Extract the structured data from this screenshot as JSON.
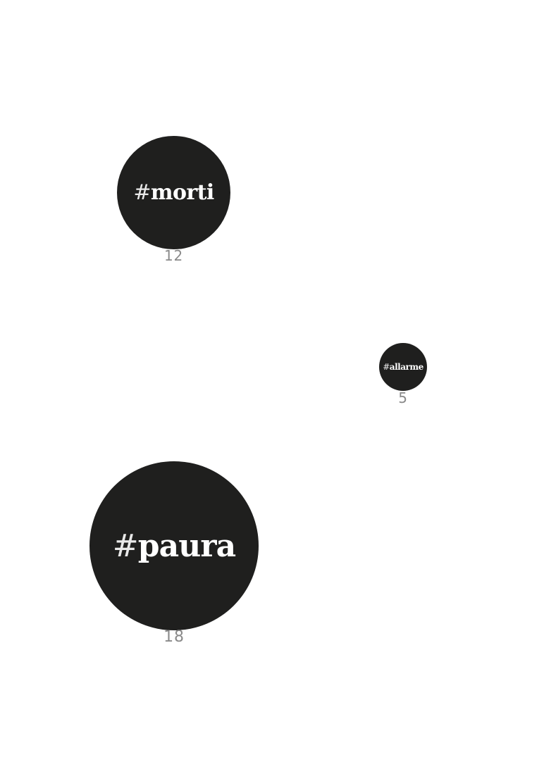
{
  "bubbles": [
    {
      "hash": "#",
      "word": "morti",
      "count": "12"
    },
    {
      "hash": "#",
      "word": "allarme",
      "count": "5"
    },
    {
      "hash": "#",
      "word": "paura",
      "count": "18"
    }
  ],
  "colors": {
    "bubble": "#1f1f1e",
    "bubble_text": "#ffffff",
    "count_text": "#8a8a8a",
    "background": "#ffffff"
  }
}
